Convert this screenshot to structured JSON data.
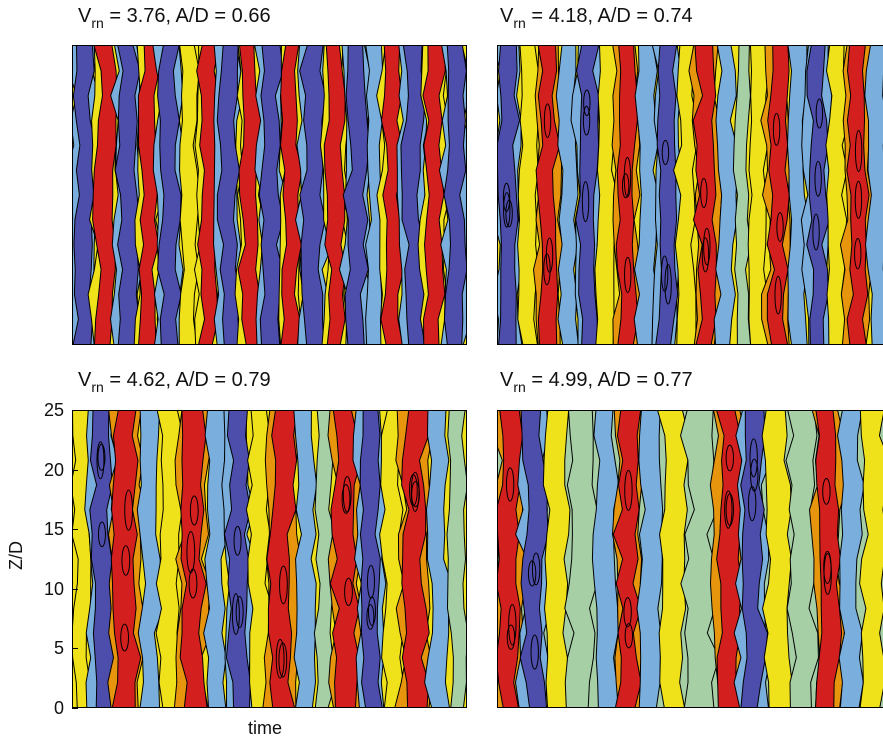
{
  "chart_data": [
    {
      "type": "heatmap",
      "title": {
        "prefix": "V",
        "sub": "rn",
        "suffix": " = 3.76, A/D = 0.66"
      },
      "xlabel": "",
      "ylabel": "",
      "stripes": [
        {
          "level": -2,
          "w": 1.0
        },
        {
          "level": 2,
          "w": 1.0
        },
        {
          "level": -2,
          "w": 1.0
        },
        {
          "level": 2,
          "w": 0.9
        },
        {
          "level": -2,
          "w": 1.0
        },
        {
          "level": 1,
          "w": 0.8
        },
        {
          "level": 2,
          "w": 0.9
        },
        {
          "level": -2,
          "w": 1.0
        },
        {
          "level": 2,
          "w": 0.9
        },
        {
          "level": -2,
          "w": 1.0
        },
        {
          "level": 2,
          "w": 0.9
        },
        {
          "level": -2,
          "w": 1.1
        },
        {
          "level": 2,
          "w": 0.9
        },
        {
          "level": -2,
          "w": 1.0
        },
        {
          "level": -1,
          "w": 0.7
        },
        {
          "level": 2,
          "w": 0.9
        },
        {
          "level": -2,
          "w": 1.0
        },
        {
          "level": 2,
          "w": 0.9
        },
        {
          "level": -2,
          "w": 1.0
        }
      ]
    },
    {
      "type": "heatmap",
      "title": {
        "prefix": "V",
        "sub": "rn",
        "suffix": " = 4.18, A/D = 0.74"
      },
      "xlabel": "",
      "ylabel": "",
      "stripes": [
        {
          "level": -2,
          "w": 0.9
        },
        {
          "level": 1,
          "w": 0.8
        },
        {
          "level": 2,
          "w": 0.9
        },
        {
          "level": -1,
          "w": 0.8
        },
        {
          "level": -2,
          "w": 0.9
        },
        {
          "level": 1,
          "w": 0.8
        },
        {
          "level": 2,
          "w": 0.9
        },
        {
          "level": -1,
          "w": 0.8
        },
        {
          "level": -2,
          "w": 0.9
        },
        {
          "level": 1,
          "w": 0.8
        },
        {
          "level": 2,
          "w": 0.9
        },
        {
          "level": -1,
          "w": 0.8
        },
        {
          "level": 0,
          "w": 0.6
        },
        {
          "level": 1,
          "w": 0.8
        },
        {
          "level": 2,
          "w": 0.9
        },
        {
          "level": -1,
          "w": 0.8
        },
        {
          "level": -2,
          "w": 0.9
        },
        {
          "level": 1,
          "w": 0.8
        },
        {
          "level": 2,
          "w": 0.9
        },
        {
          "level": -1,
          "w": 0.8
        }
      ]
    },
    {
      "type": "heatmap",
      "title": {
        "prefix": "V",
        "sub": "rn",
        "suffix": " = 4.62, A/D = 0.79"
      },
      "xlabel": "time",
      "ylabel": "Z/D",
      "yticks": [
        0,
        5,
        10,
        15,
        20,
        25
      ],
      "ylim": [
        0,
        25
      ],
      "stripes": [
        {
          "level": 1,
          "w": 0.6
        },
        {
          "level": -2,
          "w": 0.8
        },
        {
          "level": 2,
          "w": 0.9
        },
        {
          "level": -1,
          "w": 0.7
        },
        {
          "level": 1,
          "w": 0.7
        },
        {
          "level": 2,
          "w": 0.9
        },
        {
          "level": -1,
          "w": 0.7
        },
        {
          "level": -2,
          "w": 0.8
        },
        {
          "level": 1,
          "w": 0.7
        },
        {
          "level": 2,
          "w": 0.9
        },
        {
          "level": -1,
          "w": 0.7
        },
        {
          "level": 0,
          "w": 0.6
        },
        {
          "level": 2,
          "w": 0.9
        },
        {
          "level": -2,
          "w": 0.8
        },
        {
          "level": 1,
          "w": 0.7
        },
        {
          "level": 2,
          "w": 0.9
        },
        {
          "level": -1,
          "w": 0.7
        },
        {
          "level": 0,
          "w": 0.6
        }
      ]
    },
    {
      "type": "heatmap",
      "title": {
        "prefix": "V",
        "sub": "rn",
        "suffix": " = 4.99, A/D = 0.77"
      },
      "xlabel": "",
      "ylabel": "",
      "stripes": [
        {
          "level": 2,
          "w": 0.8
        },
        {
          "level": -2,
          "w": 0.8
        },
        {
          "level": 1,
          "w": 0.7
        },
        {
          "level": 0,
          "w": 0.9
        },
        {
          "level": -1,
          "w": 0.7
        },
        {
          "level": 2,
          "w": 0.8
        },
        {
          "level": -1,
          "w": 0.7
        },
        {
          "level": 1,
          "w": 0.8
        },
        {
          "level": 0,
          "w": 1.0
        },
        {
          "level": 2,
          "w": 0.8
        },
        {
          "level": -2,
          "w": 0.8
        },
        {
          "level": 1,
          "w": 0.8
        },
        {
          "level": 0,
          "w": 0.9
        },
        {
          "level": 2,
          "w": 0.8
        },
        {
          "level": -1,
          "w": 0.7
        },
        {
          "level": 1,
          "w": 0.8
        }
      ]
    }
  ],
  "colors": {
    "-2": "#4d4dab",
    "-1": "#7aaedc",
    "0": "#a6cfa6",
    "1": "#f0e21a",
    "2": "#d41f1f",
    "1.5": "#e8950e",
    "outline": "#000000"
  }
}
